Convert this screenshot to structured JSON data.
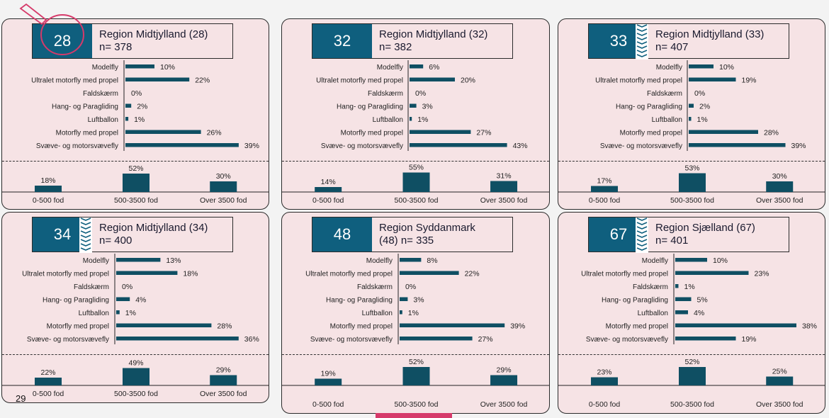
{
  "page": {
    "number": "29"
  },
  "colors": {
    "bar": "#0f4f63",
    "header_box": "#0f5f7e",
    "panel_bg": "#f6e3e5",
    "accent_pink": "#d63a6a"
  },
  "icons": {
    "clip": "circle-annotation-icon"
  },
  "chart_data": [
    {
      "type": "bar",
      "number": "28",
      "title_line1": "Region Midtjylland (28)",
      "title_line2": "n= 378",
      "categories": [
        "Modelfly",
        "Ultralet motorfly med propel",
        "Faldskærm",
        "Hang- og Paragliding",
        "Luftballon",
        "Motorfly med propel",
        "Svæve- og motorsvævefly"
      ],
      "values": [
        10,
        22,
        0,
        2,
        1,
        26,
        39
      ],
      "value_labels": [
        "10%",
        "22%",
        "0%",
        "2%",
        "1%",
        "26%",
        "39%"
      ],
      "altitude_categories": [
        "0-500 fod",
        "500-3500 fod",
        "Over 3500 fod"
      ],
      "altitude_values": [
        18,
        52,
        30
      ],
      "altitude_labels": [
        "18%",
        "52%",
        "30%"
      ]
    },
    {
      "type": "bar",
      "number": "32",
      "title_line1": "Region Midtjylland (32)",
      "title_line2": "n= 382",
      "categories": [
        "Modelfly",
        "Ultralet motorfly med propel",
        "Faldskærm",
        "Hang- og Paragliding",
        "Luftballon",
        "Motorfly med propel",
        "Svæve- og motorsvævefly"
      ],
      "values": [
        6,
        20,
        0,
        3,
        1,
        27,
        43
      ],
      "value_labels": [
        "6%",
        "20%",
        "0%",
        "3%",
        "1%",
        "27%",
        "43%"
      ],
      "altitude_categories": [
        "0-500 fod",
        "500-3500 fod",
        "Over 3500 fod"
      ],
      "altitude_values": [
        14,
        55,
        31
      ],
      "altitude_labels": [
        "14%",
        "55%",
        "31%"
      ]
    },
    {
      "type": "bar",
      "number": "33",
      "title_line1": "Region Midtjylland (33)",
      "title_line2": "n= 407",
      "categories": [
        "Modelfly",
        "Ultralet motorfly med propel",
        "Faldskærm",
        "Hang- og Paragliding",
        "Luftballon",
        "Motorfly med propel",
        "Svæve- og motorsvævefly"
      ],
      "values": [
        10,
        19,
        0,
        2,
        1,
        28,
        39
      ],
      "value_labels": [
        "10%",
        "19%",
        "0%",
        "2%",
        "1%",
        "28%",
        "39%"
      ],
      "altitude_categories": [
        "0-500 fod",
        "500-3500 fod",
        "Over 3500 fod"
      ],
      "altitude_values": [
        17,
        53,
        30
      ],
      "altitude_labels": [
        "17%",
        "53%",
        "30%"
      ]
    },
    {
      "type": "bar",
      "number": "34",
      "title_line1": "Region Midtjylland (34)",
      "title_line2": "n= 400",
      "categories": [
        "Modelfly",
        "Ultralet motorfly med propel",
        "Faldskærm",
        "Hang- og Paragliding",
        "Luftballon",
        "Motorfly med propel",
        "Svæve- og motorsvævefly"
      ],
      "values": [
        13,
        18,
        0,
        4,
        1,
        28,
        36
      ],
      "value_labels": [
        "13%",
        "18%",
        "0%",
        "4%",
        "1%",
        "28%",
        "36%"
      ],
      "altitude_categories": [
        "0-500 fod",
        "500-3500 fod",
        "Over 3500 fod"
      ],
      "altitude_values": [
        22,
        49,
        29
      ],
      "altitude_labels": [
        "22%",
        "49%",
        "29%"
      ]
    },
    {
      "type": "bar",
      "number": "48",
      "title_line1": "Region Syddanmark",
      "title_line2": "(48) n= 335",
      "categories": [
        "Modelfly",
        "Ultralet motorfly med propel",
        "Faldskærm",
        "Hang- og Paragliding",
        "Luftballon",
        "Motorfly med propel",
        "Svæve- og motorsvævefly"
      ],
      "values": [
        8,
        22,
        0,
        3,
        1,
        39,
        27
      ],
      "value_labels": [
        "8%",
        "22%",
        "0%",
        "3%",
        "1%",
        "39%",
        "27%"
      ],
      "altitude_categories": [
        "0-500 fod",
        "500-3500 fod",
        "Over 3500 fod"
      ],
      "altitude_values": [
        19,
        52,
        29
      ],
      "altitude_labels": [
        "19%",
        "52%",
        "29%"
      ]
    },
    {
      "type": "bar",
      "number": "67",
      "title_line1": "Region Sjælland (67)",
      "title_line2": "n= 401",
      "categories": [
        "Modelfly",
        "Ultralet motorfly med propel",
        "Faldskærm",
        "Hang- og Paragliding",
        "Luftballon",
        "Motorfly med propel",
        "Svæve- og motorsvævefly"
      ],
      "values": [
        10,
        23,
        1,
        5,
        4,
        38,
        19
      ],
      "value_labels": [
        "10%",
        "23%",
        "1%",
        "5%",
        "4%",
        "38%",
        "19%"
      ],
      "altitude_categories": [
        "0-500 fod",
        "500-3500 fod",
        "Over 3500 fod"
      ],
      "altitude_values": [
        23,
        52,
        25
      ],
      "altitude_labels": [
        "23%",
        "52%",
        "25%"
      ]
    }
  ]
}
